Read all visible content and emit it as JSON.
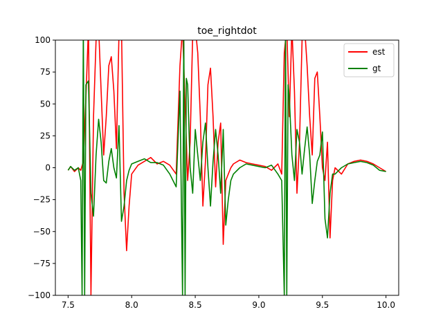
{
  "chart_data": {
    "type": "line",
    "title": "toe_rightdot",
    "xlabel": "",
    "ylabel": "",
    "xlim": [
      7.4,
      10.1
    ],
    "ylim": [
      -100,
      100
    ],
    "xticks": [
      "7.5",
      "8.0",
      "8.5",
      "9.0",
      "9.5",
      "10.0"
    ],
    "yticks": [
      "100",
      "75",
      "50",
      "25",
      "0",
      "−25",
      "−50",
      "−75",
      "−100"
    ],
    "legend_position": "top-right",
    "grid": false,
    "series": [
      {
        "name": "est",
        "color": "#ff0000",
        "x": [
          7.5,
          7.52,
          7.55,
          7.58,
          7.6,
          7.62,
          7.64,
          7.66,
          7.68,
          7.7,
          7.72,
          7.74,
          7.76,
          7.78,
          7.8,
          7.82,
          7.84,
          7.86,
          7.88,
          7.9,
          7.92,
          7.94,
          7.96,
          7.98,
          8.0,
          8.05,
          8.1,
          8.15,
          8.2,
          8.25,
          8.3,
          8.35,
          8.38,
          8.4,
          8.42,
          8.44,
          8.46,
          8.48,
          8.5,
          8.52,
          8.54,
          8.56,
          8.58,
          8.6,
          8.62,
          8.64,
          8.66,
          8.68,
          8.7,
          8.72,
          8.74,
          8.76,
          8.78,
          8.8,
          8.85,
          8.9,
          8.95,
          9.0,
          9.05,
          9.1,
          9.15,
          9.18,
          9.2,
          9.22,
          9.24,
          9.26,
          9.28,
          9.3,
          9.32,
          9.34,
          9.36,
          9.38,
          9.4,
          9.42,
          9.44,
          9.46,
          9.48,
          9.5,
          9.52,
          9.54,
          9.56,
          9.58,
          9.6,
          9.65,
          9.7,
          9.75,
          9.8,
          9.85,
          9.9,
          9.95,
          10.0
        ],
        "values": [
          -2,
          1,
          -3,
          0,
          -2,
          5,
          55,
          110,
          -100,
          40,
          100,
          110,
          60,
          10,
          40,
          80,
          87,
          60,
          15,
          105,
          110,
          -20,
          -65,
          -30,
          -5,
          2,
          5,
          8,
          3,
          5,
          2,
          -5,
          80,
          110,
          50,
          -10,
          20,
          105,
          110,
          90,
          40,
          -30,
          5,
          65,
          78,
          40,
          -15,
          20,
          35,
          -60,
          -10,
          -5,
          0,
          3,
          6,
          4,
          3,
          2,
          1,
          -2,
          3,
          -5,
          90,
          110,
          40,
          110,
          60,
          -20,
          20,
          100,
          110,
          80,
          40,
          10,
          70,
          75,
          40,
          0,
          -10,
          20,
          -55,
          -10,
          0,
          -5,
          3,
          5,
          6,
          5,
          3,
          0,
          -3
        ]
      },
      {
        "name": "gt",
        "color": "#008000",
        "x": [
          7.5,
          7.52,
          7.55,
          7.58,
          7.6,
          7.61,
          7.62,
          7.63,
          7.64,
          7.66,
          7.68,
          7.7,
          7.72,
          7.74,
          7.76,
          7.78,
          7.8,
          7.82,
          7.84,
          7.86,
          7.88,
          7.9,
          7.92,
          7.94,
          7.96,
          7.98,
          8.0,
          8.05,
          8.1,
          8.15,
          8.2,
          8.25,
          8.3,
          8.35,
          8.38,
          8.4,
          8.41,
          8.42,
          8.43,
          8.44,
          8.46,
          8.48,
          8.5,
          8.52,
          8.54,
          8.56,
          8.58,
          8.6,
          8.62,
          8.64,
          8.66,
          8.68,
          8.7,
          8.72,
          8.74,
          8.76,
          8.78,
          8.8,
          8.85,
          8.9,
          8.95,
          9.0,
          9.05,
          9.1,
          9.15,
          9.18,
          9.2,
          9.21,
          9.22,
          9.23,
          9.24,
          9.26,
          9.28,
          9.3,
          9.32,
          9.34,
          9.36,
          9.38,
          9.4,
          9.42,
          9.44,
          9.46,
          9.48,
          9.5,
          9.52,
          9.54,
          9.56,
          9.58,
          9.6,
          9.65,
          9.7,
          9.75,
          9.8,
          9.85,
          9.9,
          9.95,
          10.0
        ],
        "values": [
          -2,
          1,
          -2,
          0,
          -10,
          -100,
          110,
          -100,
          65,
          68,
          -20,
          -38,
          10,
          38,
          20,
          -10,
          -12,
          5,
          15,
          0,
          -8,
          33,
          -42,
          -30,
          -10,
          -2,
          3,
          5,
          7,
          4,
          4,
          2,
          -5,
          -15,
          60,
          -100,
          110,
          -100,
          70,
          65,
          0,
          -20,
          30,
          10,
          -10,
          20,
          35,
          0,
          -30,
          5,
          30,
          10,
          -20,
          30,
          -45,
          -25,
          -10,
          -5,
          0,
          3,
          2,
          1,
          0,
          2,
          -5,
          -10,
          -100,
          110,
          -100,
          65,
          55,
          10,
          -10,
          30,
          20,
          -5,
          15,
          32,
          10,
          -28,
          -10,
          5,
          10,
          28,
          -40,
          -55,
          -20,
          -5,
          -5,
          0,
          3,
          4,
          5,
          4,
          2,
          -2,
          -3
        ]
      }
    ]
  }
}
